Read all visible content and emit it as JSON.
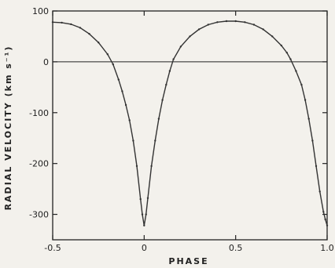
{
  "chart_data": {
    "type": "line",
    "title": "",
    "xlabel": "PHASE",
    "ylabel": "RADIAL VELOCITY (km s⁻¹)",
    "xlim": [
      -0.5,
      1.0
    ],
    "ylim": [
      -350,
      100
    ],
    "grid": false,
    "legend": "none",
    "x_ticks": [
      -0.5,
      0,
      0.5,
      1.0
    ],
    "x_tick_labels": [
      "-0.5",
      "0",
      "0.5",
      "1.0"
    ],
    "y_ticks": [
      100,
      0,
      -100,
      -200,
      -300
    ],
    "y_tick_labels": [
      "100",
      "0",
      "-100",
      "-200",
      "-300"
    ],
    "reference_line": {
      "y": 0
    },
    "series": [
      {
        "name": "",
        "x": [
          -0.5,
          -0.45,
          -0.4,
          -0.35,
          -0.3,
          -0.25,
          -0.2,
          -0.17,
          -0.14,
          -0.12,
          -0.1,
          -0.08,
          -0.06,
          -0.04,
          -0.02,
          -0.01,
          0.0,
          0.01,
          0.02,
          0.04,
          0.06,
          0.08,
          0.1,
          0.12,
          0.14,
          0.16,
          0.2,
          0.25,
          0.3,
          0.35,
          0.4,
          0.45,
          0.5,
          0.55,
          0.6,
          0.65,
          0.7,
          0.75,
          0.78,
          0.8,
          0.83,
          0.86,
          0.88,
          0.9,
          0.92,
          0.94,
          0.96,
          0.98,
          0.99,
          1.0
        ],
        "y": [
          78,
          77,
          74,
          67,
          55,
          38,
          15,
          -5,
          -35,
          -58,
          -85,
          -115,
          -155,
          -205,
          -270,
          -300,
          -322,
          -300,
          -268,
          -205,
          -155,
          -112,
          -75,
          -45,
          -18,
          5,
          30,
          50,
          64,
          73,
          78,
          80,
          80,
          78,
          73,
          64,
          50,
          32,
          18,
          5,
          -18,
          -45,
          -75,
          -112,
          -155,
          -205,
          -255,
          -295,
          -310,
          -322
        ]
      }
    ],
    "colors": {
      "line": "#333333",
      "axis": "#222222",
      "background": "#f3f1ec"
    }
  }
}
